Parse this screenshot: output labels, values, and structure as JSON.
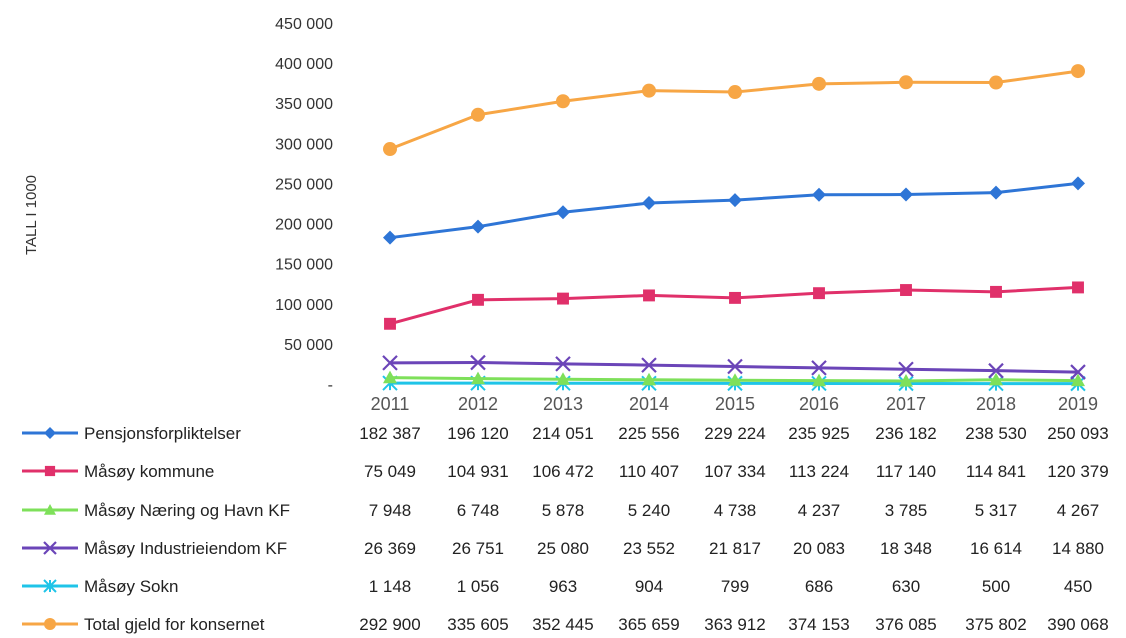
{
  "chart_data": {
    "type": "line",
    "title": "",
    "ylabel": "TALL I 1000",
    "xlabel": "",
    "categories": [
      "2011",
      "2012",
      "2013",
      "2014",
      "2015",
      "2016",
      "2017",
      "2018",
      "2019"
    ],
    "ylim": [
      0,
      450000
    ],
    "yticks": [
      0,
      50000,
      100000,
      150000,
      200000,
      250000,
      300000,
      350000,
      400000,
      450000
    ],
    "ytick_labels": [
      "-",
      "50 000",
      "100 000",
      "150 000",
      "200 000",
      "250 000",
      "300 000",
      "350 000",
      "400 000",
      "450 000"
    ],
    "grid": false,
    "legend": "data-table-below",
    "series": [
      {
        "name": "Pensjonsforpliktelser",
        "color": "#2e75d6",
        "marker": "diamond",
        "values": [
          182387,
          196120,
          214051,
          225556,
          229224,
          235925,
          236182,
          238530,
          250093
        ],
        "labels": [
          "182 387",
          "196 120",
          "214 051",
          "225 556",
          "229 224",
          "235 925",
          "236 182",
          "238 530",
          "250 093"
        ]
      },
      {
        "name": "Måsøy kommune",
        "color": "#e0306a",
        "marker": "square",
        "values": [
          75049,
          104931,
          106472,
          110407,
          107334,
          113224,
          117140,
          114841,
          120379
        ],
        "labels": [
          "75 049",
          "104 931",
          "106 472",
          "110 407",
          "107 334",
          "113 224",
          "117 140",
          "114 841",
          "120 379"
        ]
      },
      {
        "name": "Måsøy Næring og Havn KF",
        "color": "#7ee05a",
        "marker": "triangle",
        "values": [
          7948,
          6748,
          5878,
          5240,
          4738,
          4237,
          3785,
          5317,
          4267
        ],
        "labels": [
          "7 948",
          "6 748",
          "5 878",
          "5 240",
          "4 738",
          "4 237",
          "3 785",
          "5 317",
          "4 267"
        ]
      },
      {
        "name": "Måsøy Industrieiendom KF",
        "color": "#6b45b8",
        "marker": "x",
        "values": [
          26369,
          26751,
          25080,
          23552,
          21817,
          20083,
          18348,
          16614,
          14880
        ],
        "labels": [
          "26 369",
          "26 751",
          "25 080",
          "23 552",
          "21 817",
          "20 083",
          "18 348",
          "16 614",
          "14 880"
        ]
      },
      {
        "name": "Måsøy Sokn",
        "color": "#1fc4e8",
        "marker": "asterisk",
        "values": [
          1148,
          1056,
          963,
          904,
          799,
          686,
          630,
          500,
          450
        ],
        "labels": [
          "1 148",
          "1 056",
          "963",
          "904",
          "799",
          "686",
          "630",
          "500",
          "450"
        ]
      },
      {
        "name": "Total gjeld for konsernet",
        "color": "#f7a645",
        "marker": "circle",
        "values": [
          292900,
          335605,
          352445,
          365659,
          363912,
          374153,
          376085,
          375802,
          390068
        ],
        "labels": [
          "292 900",
          "335 605",
          "352 445",
          "365 659",
          "363 912",
          "374 153",
          "376 085",
          "375 802",
          "390 068"
        ]
      }
    ]
  }
}
